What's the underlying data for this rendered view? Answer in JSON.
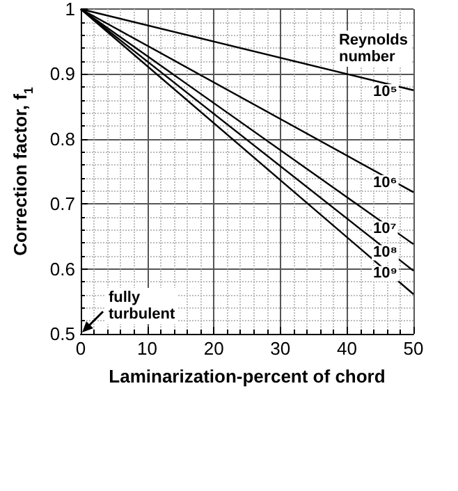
{
  "chart_data": {
    "type": "line",
    "ylabel": "Correction factor, f$_{1}$",
    "xlabel": "Laminarization-percent of chord",
    "x": [
      0,
      50
    ],
    "series": [
      {
        "name": "10⁵",
        "color": "#000000",
        "values": [
          1,
          0.875
        ]
      },
      {
        "name": "10⁶",
        "color": "#000000",
        "values": [
          1,
          0.718
        ]
      },
      {
        "name": "10⁷",
        "color": "#000000",
        "values": [
          1,
          0.638
        ]
      },
      {
        "name": "10⁸",
        "color": "#000000",
        "values": [
          1,
          0.597
        ]
      },
      {
        "name": "10⁹",
        "color": "#000000",
        "values": [
          1,
          0.561
        ]
      }
    ],
    "xlim": [
      0,
      50
    ],
    "xticks": [
      0,
      10,
      20,
      30,
      40,
      50
    ],
    "ylim": [
      0.5,
      1
    ],
    "yticks": [
      0.5,
      0.6,
      0.7,
      0.8,
      0.9,
      1
    ],
    "grid": true,
    "marker": "none",
    "line_style": "solid",
    "legend": false,
    "annotations": [
      "Reynolds number",
      "fully turbulent"
    ]
  }
}
